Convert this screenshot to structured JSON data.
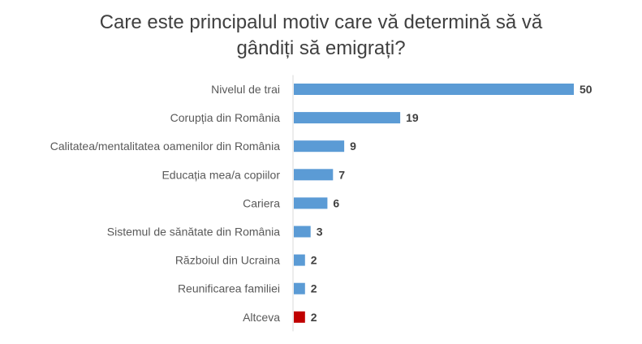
{
  "chart_data": {
    "type": "bar",
    "orientation": "horizontal",
    "title_line1": "Care este principalul motiv care vă determină să vă",
    "title_line2": "gândiți să emigrați?",
    "categories": [
      "Nivelul de trai",
      "Corupția din România",
      "Calitatea/mentalitatea oamenilor din România",
      "Educația mea/a copiilor",
      "Cariera",
      "Sistemul de sănătate din România",
      "Războiul din Ucraina",
      "Reunificarea familiei",
      "Altceva"
    ],
    "values": [
      50,
      19,
      9,
      7,
      6,
      3,
      2,
      2,
      2
    ],
    "value_labels": [
      "50",
      "19",
      "9",
      "7",
      "6",
      "3",
      "2",
      "2",
      "2"
    ],
    "bar_colors": [
      "#5b9bd5",
      "#5b9bd5",
      "#5b9bd5",
      "#5b9bd5",
      "#5b9bd5",
      "#5b9bd5",
      "#5b9bd5",
      "#5b9bd5",
      "#c00000"
    ],
    "xlim": [
      0,
      50
    ],
    "grid": false,
    "legend": "none"
  }
}
